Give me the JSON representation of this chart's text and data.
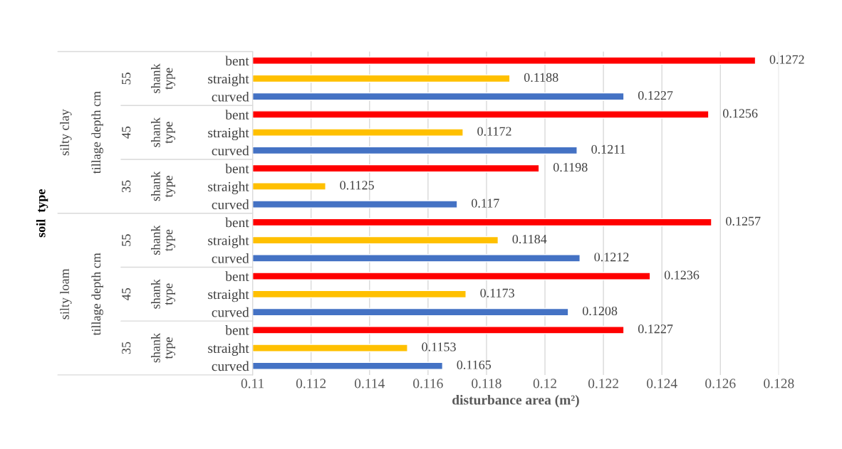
{
  "chart_data": {
    "type": "bar",
    "orientation": "horizontal",
    "categories": [
      "bent",
      "straight",
      "curved",
      "bent",
      "straight",
      "curved",
      "bent",
      "straight",
      "curved",
      "bent",
      "straight",
      "curved",
      "bent",
      "straight",
      "curved",
      "bent",
      "straight",
      "curved"
    ],
    "values": [
      0.1272,
      0.1188,
      0.1227,
      0.1256,
      0.1172,
      0.1211,
      0.1198,
      0.1125,
      0.117,
      0.1257,
      0.1184,
      0.1212,
      0.1236,
      0.1173,
      0.1208,
      0.1227,
      0.1153,
      0.1165
    ],
    "colors": [
      "#ff0000",
      "#ffc000",
      "#4472c4",
      "#ff0000",
      "#ffc000",
      "#4472c4",
      "#ff0000",
      "#ffc000",
      "#4472c4",
      "#ff0000",
      "#ffc000",
      "#4472c4",
      "#ff0000",
      "#ffc000",
      "#4472c4",
      "#ff0000",
      "#ffc000",
      "#4472c4"
    ],
    "xlabel": "disturbance area (m²)",
    "annotations": [
      "shank type",
      "shank type",
      "shank type",
      "shank type",
      "shank type",
      "shank type",
      "55",
      "45",
      "35",
      "55",
      "45",
      "35",
      "tillage depth cm",
      "tillage depth cm",
      "silty clay",
      "silty loam",
      "soil  type"
    ],
    "xlim": [
      0.11,
      0.128
    ],
    "xticks": [
      0.11,
      0.112,
      0.114,
      0.116,
      0.118,
      0.12,
      0.122,
      0.124,
      0.126,
      0.128
    ],
    "grid": "x",
    "data_labels": true
  }
}
